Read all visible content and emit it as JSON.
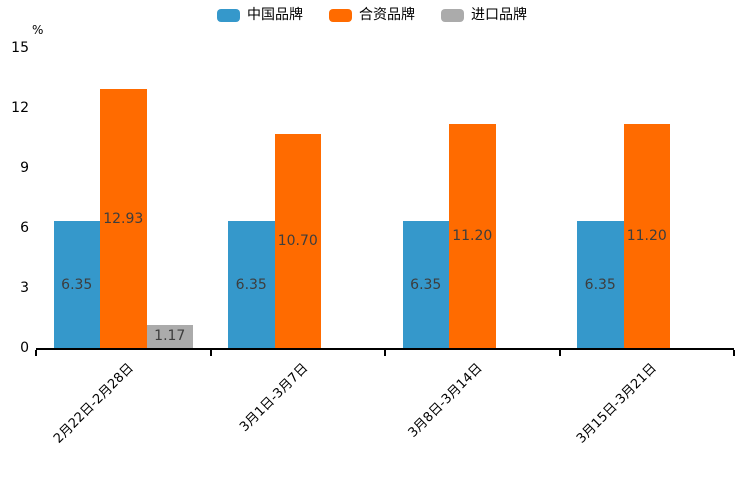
{
  "chart_data": {
    "type": "bar",
    "title": "",
    "unit_label": "%",
    "categories": [
      "2月22日-2月28日",
      "3月1日-3月7日",
      "3月8日-3月14日",
      "3月15日-3月21日"
    ],
    "series": [
      {
        "name": "中国品牌",
        "color": "#3598CB",
        "values": [
          6.35,
          6.35,
          6.35,
          6.35
        ]
      },
      {
        "name": "合资品牌",
        "color": "#FF6B00",
        "values": [
          12.93,
          10.7,
          11.2,
          11.2
        ]
      },
      {
        "name": "进口品牌",
        "color": "#ABABAB",
        "values": [
          1.17,
          null,
          null,
          null
        ]
      }
    ],
    "yticks": [
      0,
      3,
      6,
      9,
      12,
      15
    ],
    "ylim": [
      0,
      15
    ],
    "grid": false,
    "legend_position": "top",
    "value_labels": true,
    "value_label_format": "2-decimals",
    "axis_color": "#000000",
    "value_label_color": "#3d3d3d"
  }
}
